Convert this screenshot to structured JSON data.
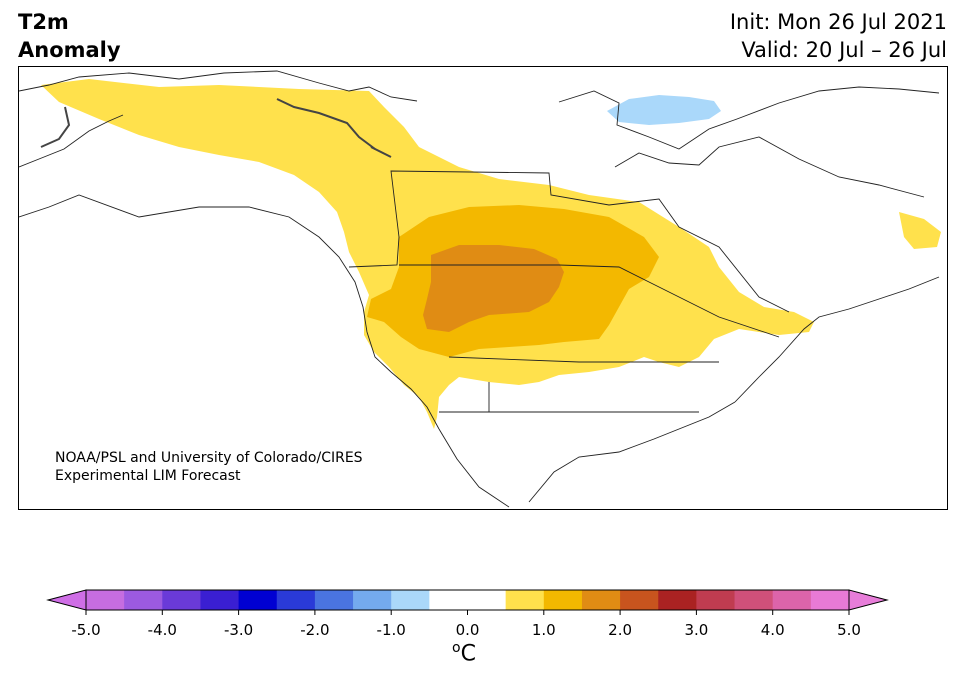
{
  "title": {
    "line1": "T2m",
    "line2": "Anomaly"
  },
  "dates": {
    "init": "Init: Mon 26 Jul 2021",
    "valid": "Valid: 20 Jul – 26 Jul"
  },
  "credit": {
    "line1": "NOAA/PSL and University of Colorado/CIRES",
    "line2": "Experimental LIM Forecast"
  },
  "colorbar": {
    "ticks": [
      "-5.0",
      "-4.0",
      "-3.0",
      "-2.0",
      "-1.0",
      "0.0",
      "1.0",
      "2.0",
      "3.0",
      "4.0",
      "5.0"
    ],
    "unit_sup": "o",
    "unit": "C",
    "colors": [
      "#c66de0",
      "#9c5ae0",
      "#6a3ad8",
      "#3a1fd2",
      "#0000d2",
      "#2a3ad8",
      "#4a74e0",
      "#74aaee",
      "#aad8fa",
      "#ffffff",
      "#ffffff",
      "#ffe14c",
      "#f3b800",
      "#e08c14",
      "#c8541e",
      "#aa2222",
      "#c03c50",
      "#d0507a",
      "#dc64aa",
      "#e87ad6"
    ],
    "under_color": "#cf6ee6",
    "over_color": "#e77dd9"
  },
  "anomaly_colors": {
    "cool": "#aad8fa",
    "warm1": "#ffe14c",
    "warm2": "#f3b800",
    "warm3": "#e08c14"
  }
}
